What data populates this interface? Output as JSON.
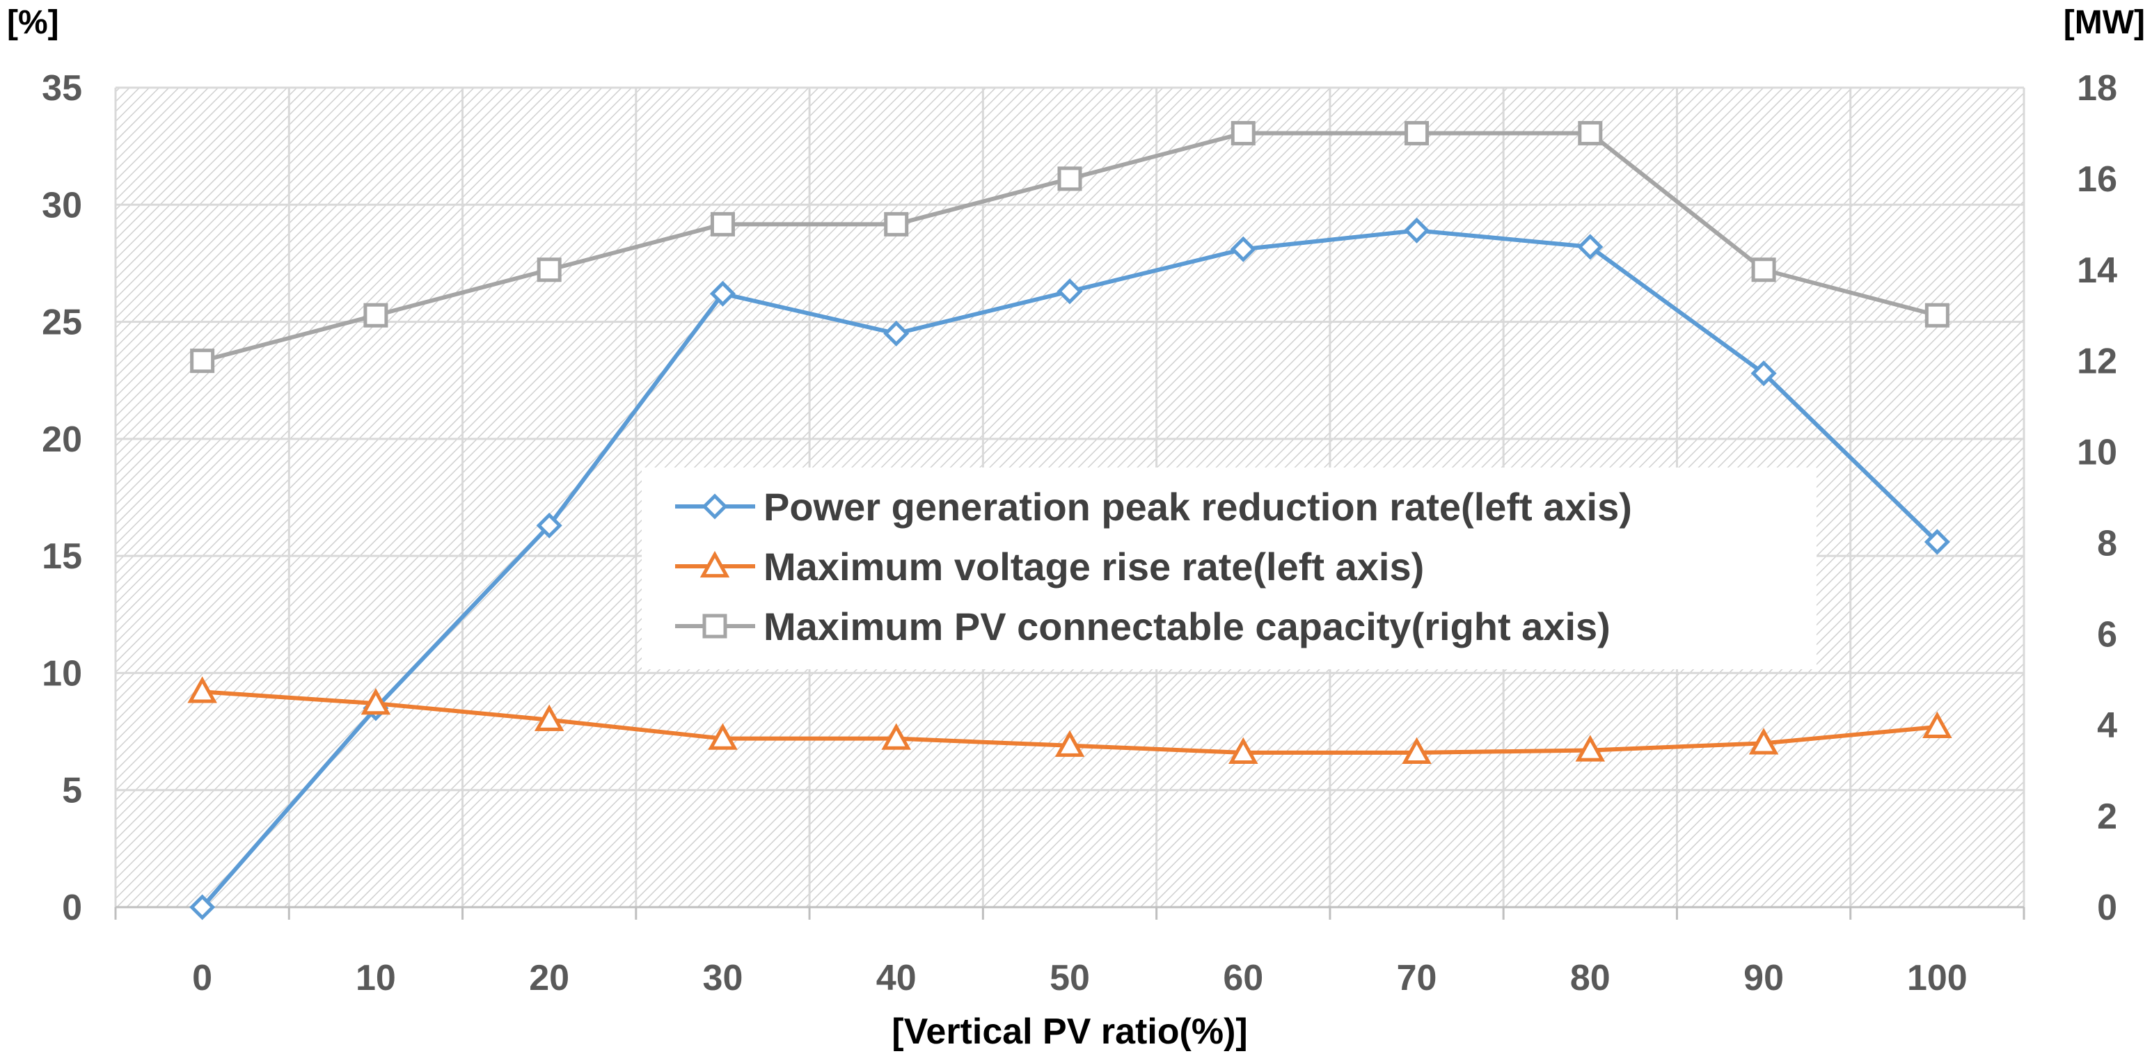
{
  "chart_data": {
    "type": "line",
    "x": [
      0,
      10,
      20,
      30,
      40,
      50,
      60,
      70,
      80,
      90,
      100
    ],
    "xlabel": "[Vertical PV ratio(%)]",
    "y_left": {
      "unit": "[%]",
      "ylim": [
        0,
        35
      ],
      "ticks": [
        0,
        5,
        10,
        15,
        20,
        25,
        30,
        35
      ]
    },
    "y_right": {
      "unit": "[MW]",
      "ylim": [
        0,
        18
      ],
      "ticks": [
        0,
        2,
        4,
        6,
        8,
        10,
        12,
        14,
        16,
        18
      ]
    },
    "grid": true,
    "legend_position": "center",
    "series": [
      {
        "name": "Power generation peak reduction rate(left axis)",
        "axis": "left",
        "marker": "diamond",
        "color": "#5B9BD5",
        "values": [
          0,
          8.5,
          16.3,
          26.2,
          24.5,
          26.3,
          28.1,
          28.9,
          28.2,
          22.8,
          15.6
        ]
      },
      {
        "name": "Maximum voltage rise rate(left axis)",
        "axis": "left",
        "marker": "triangle",
        "color": "#ED7D31",
        "values": [
          9.2,
          8.7,
          8.0,
          7.2,
          7.2,
          6.9,
          6.6,
          6.6,
          6.7,
          7.0,
          7.7
        ]
      },
      {
        "name": "Maximum PV connectable capacity(right axis)",
        "axis": "right",
        "marker": "square",
        "color": "#A5A5A5",
        "values": [
          12,
          13,
          14,
          15,
          15,
          16,
          17,
          17,
          17,
          14,
          13
        ]
      }
    ]
  }
}
